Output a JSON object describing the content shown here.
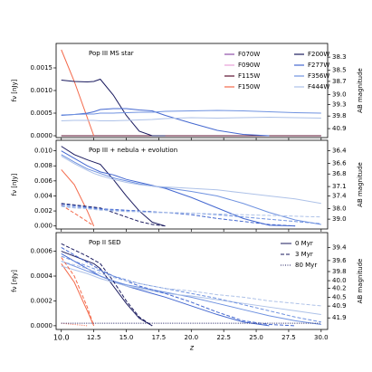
{
  "chart_data": [
    {
      "type": "line",
      "annotation": "Pop III MS star",
      "ylabel": "fν [nJy]",
      "y2label": "AB magnitude",
      "legend": "upper right",
      "legend_columns": 2,
      "x": [
        10,
        11,
        12,
        12.5,
        13,
        14,
        15,
        16,
        17,
        18,
        20,
        22,
        24,
        26,
        28,
        30
      ],
      "xlim": [
        9.6,
        30.5
      ],
      "ylim": [
        -4e-05,
        0.00204
      ],
      "yticks": [
        {
          "value": 0,
          "label": "0.0000"
        },
        {
          "value": 0.0005,
          "label": "0.0005"
        },
        {
          "value": 0.001,
          "label": "0.0010"
        },
        {
          "value": 0.0015,
          "label": "0.0015"
        }
      ],
      "y2ticks": [
        38.3,
        {
          "value": 38.5,
          "label": "38.5"
        },
        38.7,
        {
          "value": 39,
          "label": "39.0"
        },
        39.3,
        39.8,
        40.9
      ],
      "series": [
        {
          "name": "F070W",
          "color": "#8e4fa8",
          "dash": "solid",
          "values": [
            0,
            0,
            0,
            0,
            0,
            0,
            0,
            0,
            0,
            0,
            0,
            0,
            0,
            0,
            0,
            0
          ]
        },
        {
          "name": "F090W",
          "color": "#e8a0d8",
          "dash": "solid",
          "values": [
            0,
            0,
            0,
            0,
            0,
            0,
            0,
            0,
            0,
            0,
            0,
            0,
            0,
            0,
            0,
            0
          ]
        },
        {
          "name": "F115W",
          "color": "#5c1030",
          "dash": "solid",
          "values": [
            0,
            0,
            0,
            0,
            0,
            0,
            0,
            0,
            0,
            0,
            0,
            0,
            0,
            0,
            0,
            0
          ]
        },
        {
          "name": "F150W",
          "color": "#f4694a",
          "dash": "solid",
          "values": [
            0.0019,
            0.0012,
            0.0004,
            0,
            null,
            null,
            null,
            null,
            null,
            null,
            null,
            null,
            null,
            null,
            null,
            null
          ]
        },
        {
          "name": "F200W",
          "color": "#1a1a5e",
          "dash": "solid",
          "values": [
            0.00123,
            0.0012,
            0.00119,
            0.0012,
            0.00125,
            0.0009,
            0.00045,
            0.0001,
            0,
            0,
            null,
            null,
            null,
            null,
            null,
            null
          ]
        },
        {
          "name": "F277W",
          "color": "#4468d0",
          "dash": "solid",
          "values": [
            0.00045,
            0.00047,
            0.0005,
            0.00053,
            0.00058,
            0.0006,
            0.0006,
            0.00057,
            0.00055,
            0.00045,
            0.00028,
            0.00012,
            3e-05,
            0,
            null,
            null
          ]
        },
        {
          "name": "F356W",
          "color": "#6f92e0",
          "dash": "solid",
          "values": [
            0.00046,
            0.00047,
            0.00048,
            0.00048,
            0.0005,
            0.0005,
            0.00051,
            0.00052,
            0.00052,
            0.00054,
            0.00055,
            0.00056,
            0.00055,
            0.00053,
            0.00051,
            0.0005
          ]
        },
        {
          "name": "F444W",
          "color": "#aec2e8",
          "dash": "solid",
          "values": [
            0.00033,
            0.00034,
            0.00034,
            0.00034,
            0.00033,
            0.00033,
            0.00034,
            0.00035,
            0.00036,
            0.00038,
            0.0004,
            0.00039,
            0.0004,
            0.00041,
            0.0004,
            0.00039
          ]
        }
      ]
    },
    {
      "type": "line",
      "annotation": "Pop III + nebula + evolution",
      "ylabel": "fν [nJy]",
      "y2label": "AB magnitude",
      "x": [
        10,
        11,
        12,
        12.5,
        13,
        14,
        15,
        16,
        17,
        18,
        20,
        22,
        24,
        26,
        28,
        30
      ],
      "xlim": [
        9.6,
        30.5
      ],
      "ylim": [
        -0.0004,
        0.0114
      ],
      "yticks": [
        {
          "value": 0,
          "label": "0.000"
        },
        {
          "value": 0.002,
          "label": "0.002"
        },
        {
          "value": 0.004,
          "label": "0.004"
        },
        {
          "value": 0.006,
          "label": "0.006"
        },
        {
          "value": 0.008,
          "label": "0.008"
        },
        {
          "value": 0.01,
          "label": "0.010"
        }
      ],
      "y2ticks": [
        36.4,
        36.6,
        36.8,
        37.1,
        37.4,
        {
          "value": 38,
          "label": "38.0"
        },
        {
          "value": 39,
          "label": "39.0"
        }
      ],
      "series": [
        {
          "name": "F150W",
          "color": "#f4694a",
          "dash": "solid",
          "values": [
            0.0075,
            0.0055,
            0.002,
            0,
            null,
            null,
            null,
            null,
            null,
            null,
            null,
            null,
            null,
            null,
            null,
            null
          ]
        },
        {
          "name": "F200W",
          "color": "#1a1a5e",
          "dash": "solid",
          "values": [
            0.0106,
            0.0095,
            0.0088,
            0.0085,
            0.0082,
            0.0062,
            0.004,
            0.002,
            0.0005,
            0,
            null,
            null,
            null,
            null,
            null,
            null
          ]
        },
        {
          "name": "F277W",
          "color": "#4468d0",
          "dash": "solid",
          "values": [
            0.01,
            0.009,
            0.008,
            0.0076,
            0.0072,
            0.0068,
            0.0062,
            0.0058,
            0.0054,
            0.005,
            0.0038,
            0.0024,
            0.001,
            0.0001,
            0,
            null
          ]
        },
        {
          "name": "F356W",
          "color": "#6f92e0",
          "dash": "solid",
          "values": [
            0.0095,
            0.0085,
            0.0076,
            0.0073,
            0.007,
            0.0064,
            0.006,
            0.0056,
            0.0053,
            0.0051,
            0.0046,
            0.004,
            0.003,
            0.0018,
            0.0008,
            0.0002
          ]
        },
        {
          "name": "F444W",
          "color": "#aec2e8",
          "dash": "solid",
          "values": [
            0.0093,
            0.0083,
            0.0074,
            0.007,
            0.0067,
            0.0062,
            0.0058,
            0.0055,
            0.0053,
            0.0052,
            0.005,
            0.0048,
            0.0044,
            0.004,
            0.0036,
            0.003
          ]
        },
        {
          "name": "F150W",
          "color": "#f4694a",
          "dash": "dashed",
          "values": [
            0.0028,
            0.0017,
            0.0006,
            0,
            null,
            null,
            null,
            null,
            null,
            null,
            null,
            null,
            null,
            null,
            null,
            null
          ]
        },
        {
          "name": "F200W",
          "color": "#1a1a5e",
          "dash": "dashed",
          "values": [
            0.003,
            0.0028,
            0.0026,
            0.0025,
            0.0024,
            0.0018,
            0.0012,
            0.0006,
            0.0002,
            0,
            null,
            null,
            null,
            null,
            null,
            null
          ]
        },
        {
          "name": "F277W",
          "color": "#4468d0",
          "dash": "dashed",
          "values": [
            0.0029,
            0.0027,
            0.0025,
            0.0024,
            0.0023,
            0.0022,
            0.0021,
            0.002,
            0.0019,
            0.0018,
            0.0015,
            0.001,
            0.0006,
            0.0002,
            0,
            null
          ]
        },
        {
          "name": "F356W",
          "color": "#6f92e0",
          "dash": "dashed",
          "values": [
            0.0027,
            0.0025,
            0.0024,
            0.0023,
            0.0022,
            0.0021,
            0.002,
            0.0019,
            0.0018,
            0.0018,
            0.0017,
            0.0015,
            0.0012,
            0.0009,
            0.0006,
            0.0003
          ]
        },
        {
          "name": "F444W",
          "color": "#aec2e8",
          "dash": "dashed",
          "values": [
            0.0026,
            0.0024,
            0.0023,
            0.0022,
            0.0021,
            0.002,
            0.0019,
            0.0019,
            0.0018,
            0.0018,
            0.0017,
            0.0016,
            0.0015,
            0.0014,
            0.0013,
            0.0012
          ]
        }
      ]
    },
    {
      "type": "line",
      "annotation": "Pop II SED",
      "ylabel": "fν [nJy]",
      "y2label": "AB magnitude",
      "xlabel": "z",
      "legend": "upper right",
      "legend_entries": [
        {
          "name": "0 Myr",
          "dash": "solid"
        },
        {
          "name": "3 Myr",
          "dash": "dashed"
        },
        {
          "name": "80 Myr",
          "dash": "dotted"
        }
      ],
      "legend_color": "#1a1a5e",
      "x": [
        10,
        11,
        12,
        12.5,
        13,
        14,
        15,
        16,
        17,
        18,
        20,
        22,
        24,
        26,
        28,
        30
      ],
      "xlim": [
        9.6,
        30.5
      ],
      "ylim": [
        -3e-05,
        0.00075
      ],
      "xticks": [
        {
          "value": 10,
          "label": "10.0"
        },
        12.5,
        {
          "value": 15,
          "label": "15.0"
        },
        17.5,
        {
          "value": 20,
          "label": "20.0"
        },
        22.5,
        {
          "value": 25,
          "label": "25.0"
        },
        27.5,
        {
          "value": 30,
          "label": "30.0"
        }
      ],
      "yticks": [
        {
          "value": 0,
          "label": "0.0000"
        },
        {
          "value": 0.0002,
          "label": "0.0002"
        },
        {
          "value": 0.0004,
          "label": "0.0004"
        },
        {
          "value": 0.0006,
          "label": "0.0006"
        }
      ],
      "y2ticks": [
        39.4,
        39.6,
        39.8,
        {
          "value": 40,
          "label": "40.0"
        },
        40.2,
        40.5,
        40.9,
        41.9
      ],
      "series": [
        {
          "name": "F150W",
          "color": "#f4694a",
          "dash": "solid",
          "values": [
            0.0005,
            0.00035,
            0.00012,
            0,
            null,
            null,
            null,
            null,
            null,
            null,
            null,
            null,
            null,
            null,
            null,
            null
          ]
        },
        {
          "name": "F200W",
          "color": "#1a1a5e",
          "dash": "solid",
          "values": [
            0.0006,
            0.00056,
            0.00052,
            0.0005,
            0.00046,
            0.00032,
            0.00018,
            6e-05,
            0,
            null,
            null,
            null,
            null,
            null,
            null,
            null
          ]
        },
        {
          "name": "F277W",
          "color": "#4468d0",
          "dash": "solid",
          "values": [
            0.00058,
            0.00052,
            0.00046,
            0.00043,
            0.0004,
            0.00036,
            0.00032,
            0.00029,
            0.00026,
            0.00023,
            0.00016,
            9e-05,
            3e-05,
            0,
            null,
            null
          ]
        },
        {
          "name": "F356W",
          "color": "#6f92e0",
          "dash": "solid",
          "values": [
            0.00052,
            0.00048,
            0.00044,
            0.00042,
            0.0004,
            0.00036,
            0.00033,
            0.00031,
            0.00029,
            0.00027,
            0.00023,
            0.00018,
            0.00013,
            8e-05,
            4e-05,
            1e-05
          ]
        },
        {
          "name": "F444W",
          "color": "#aec2e8",
          "dash": "solid",
          "values": [
            0.00048,
            0.00045,
            0.00042,
            0.0004,
            0.00038,
            0.00035,
            0.00032,
            0.0003,
            0.00028,
            0.00026,
            0.00024,
            0.00021,
            0.00018,
            0.00015,
            0.00012,
            9e-05
          ]
        },
        {
          "name": "F150W",
          "color": "#f4694a",
          "dash": "dashed",
          "values": [
            0.00055,
            0.0004,
            0.00015,
            0,
            null,
            null,
            null,
            null,
            null,
            null,
            null,
            null,
            null,
            null,
            null,
            null
          ]
        },
        {
          "name": "F200W",
          "color": "#1a1a5e",
          "dash": "dashed",
          "values": [
            0.00066,
            0.00061,
            0.00056,
            0.00053,
            0.0005,
            0.00036,
            0.0002,
            7e-05,
            0,
            null,
            null,
            null,
            null,
            null,
            null,
            null
          ]
        },
        {
          "name": "F277W",
          "color": "#4468d0",
          "dash": "dashed",
          "values": [
            0.00063,
            0.00057,
            0.00051,
            0.00048,
            0.00045,
            0.0004,
            0.00036,
            0.00032,
            0.00029,
            0.00026,
            0.00019,
            0.00011,
            4e-05,
            1e-05,
            0,
            null
          ]
        },
        {
          "name": "F356W",
          "color": "#6f92e0",
          "dash": "dashed",
          "values": [
            0.00056,
            0.00052,
            0.00048,
            0.00046,
            0.00044,
            0.0004,
            0.00037,
            0.00034,
            0.00032,
            0.0003,
            0.00026,
            0.00022,
            0.00017,
            0.00012,
            7e-05,
            3e-05
          ]
        },
        {
          "name": "F444W",
          "color": "#aec2e8",
          "dash": "dashed",
          "values": [
            0.00052,
            0.00049,
            0.00046,
            0.00044,
            0.00042,
            0.00039,
            0.00036,
            0.00034,
            0.00032,
            0.0003,
            0.00028,
            0.00025,
            0.00023,
            0.0002,
            0.00018,
            0.00016
          ]
        },
        {
          "name": "F150W",
          "color": "#f4694a",
          "dash": "dotted",
          "values": [
            2e-05,
            1e-05,
            0,
            null,
            null,
            null,
            null,
            null,
            null,
            null,
            null,
            null,
            null,
            null,
            null,
            null
          ]
        },
        {
          "name": "F444W",
          "color": "#1a1a5e",
          "dash": "dotted",
          "values": [
            2e-05,
            2e-05,
            2e-05,
            2e-05,
            2e-05,
            2e-05,
            2e-05,
            2e-05,
            2e-05,
            2e-05,
            2e-05,
            2e-05,
            2e-05,
            2e-05,
            2e-05,
            2e-05
          ]
        }
      ]
    }
  ]
}
